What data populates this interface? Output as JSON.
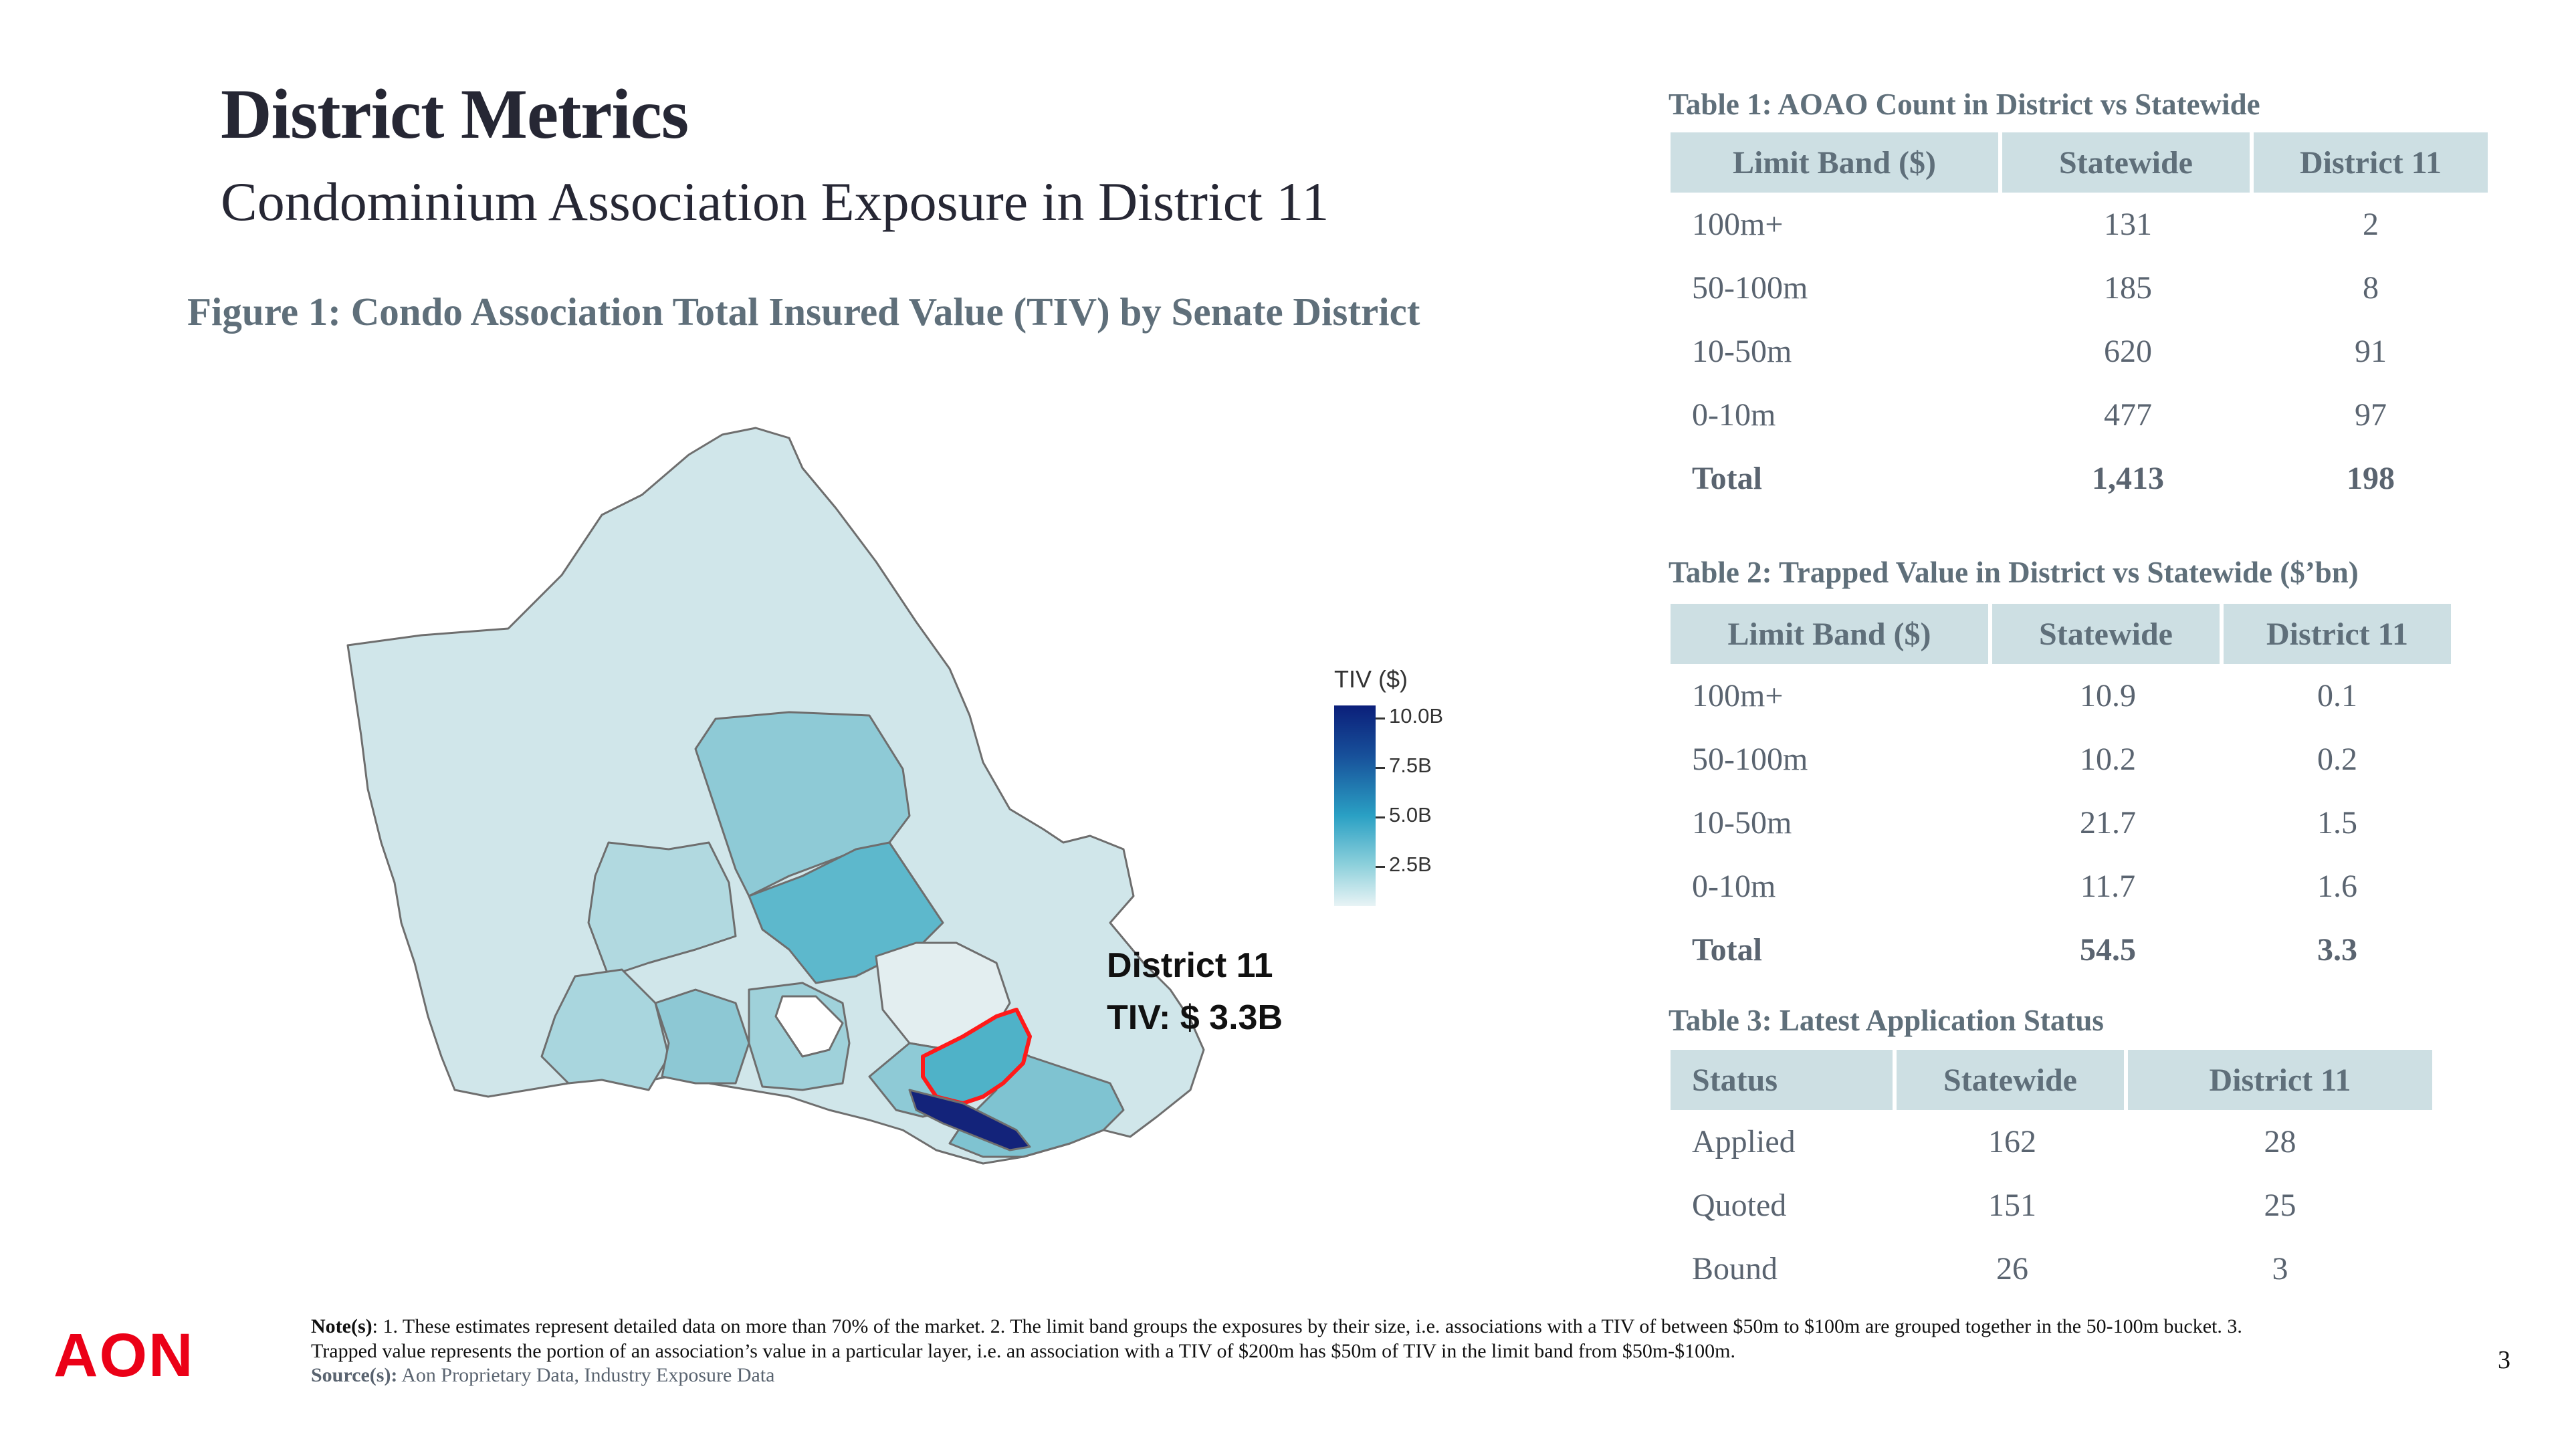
{
  "header": {
    "title": "District Metrics",
    "subtitle": "Condominium Association Exposure in District 11"
  },
  "figure": {
    "caption": "Figure 1: Condo Association Total Insured Value (TIV) by Senate District",
    "legend_title": "TIV ($)",
    "legend_ticks": [
      "10.0B",
      "7.5B",
      "5.0B",
      "2.5B"
    ],
    "highlight_name": "District 11",
    "highlight_value": "TIV: $ 3.3B",
    "colors": {
      "highlight_outline": "#ff1a1a",
      "max": "#0b1f7a",
      "min": "#e8f3f5"
    }
  },
  "table1": {
    "caption": "Table 1: AOAO Count in District vs Statewide",
    "headers": [
      "Limit Band ($)",
      "Statewide",
      "District 11"
    ],
    "rows": [
      [
        "100m+",
        "131",
        "2"
      ],
      [
        "50-100m",
        "185",
        "8"
      ],
      [
        "10-50m",
        "620",
        "91"
      ],
      [
        "0-10m",
        "477",
        "97"
      ],
      [
        "Total",
        "1,413",
        "198"
      ]
    ]
  },
  "table2": {
    "caption": "Table 2: Trapped Value in District vs Statewide ($’bn)",
    "headers": [
      "Limit Band ($)",
      "Statewide",
      "District 11"
    ],
    "rows": [
      [
        "100m+",
        "10.9",
        "0.1"
      ],
      [
        "50-100m",
        "10.2",
        "0.2"
      ],
      [
        "10-50m",
        "21.7",
        "1.5"
      ],
      [
        "0-10m",
        "11.7",
        "1.6"
      ],
      [
        "Total",
        "54.5",
        "3.3"
      ]
    ]
  },
  "table3": {
    "caption": "Table 3: Latest Application Status",
    "headers": [
      "Status",
      "Statewide",
      "District 11"
    ],
    "rows": [
      [
        "Applied",
        "162",
        "28"
      ],
      [
        "Quoted",
        "151",
        "25"
      ],
      [
        "Bound",
        "26",
        "3"
      ]
    ]
  },
  "footer": {
    "logo_text": "AON",
    "notes_label": "Note(s)",
    "notes_text": ": 1. These estimates represent detailed data on more than 70% of the market. 2. The limit band groups the exposures by their size, i.e. associations with a TIV of between $50m to $100m are grouped together in the 50-100m bucket. 3. Trapped value represents the portion of an association’s value in a particular layer, i.e. an association with a TIV of $200m has $50m of TIV in the limit band from $50m-$100m.",
    "source_label": "Source(s):",
    "source_text": " Aon Proprietary Data, Industry Exposure Data",
    "page_number": "3"
  }
}
